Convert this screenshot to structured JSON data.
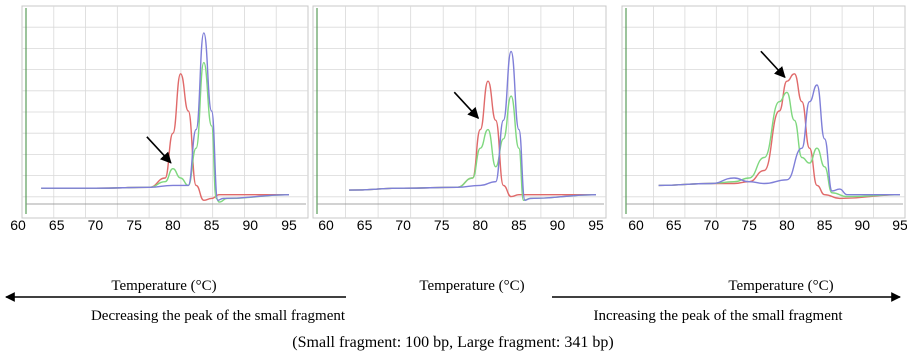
{
  "chart_data": [
    {
      "type": "line",
      "panel": "left",
      "xlim": [
        63,
        95
      ],
      "ylim": [
        0,
        1
      ],
      "x_ticks": [
        "60",
        "65",
        "70",
        "75",
        "80",
        "85",
        "90",
        "95"
      ],
      "grid": true,
      "series": [
        {
          "color": "#e06a6a",
          "points": [
            [
              63,
              0.085
            ],
            [
              70,
              0.085
            ],
            [
              77,
              0.09
            ],
            [
              79,
              0.14
            ],
            [
              80,
              0.38
            ],
            [
              81,
              0.7
            ],
            [
              82,
              0.5
            ],
            [
              83,
              0.1
            ],
            [
              84,
              0.02
            ],
            [
              85,
              0.03
            ],
            [
              86,
              0.05
            ],
            [
              95,
              0.05
            ]
          ]
        },
        {
          "color": "#7fd87f",
          "points": [
            [
              63,
              0.085
            ],
            [
              70,
              0.085
            ],
            [
              77,
              0.09
            ],
            [
              79,
              0.12
            ],
            [
              80,
              0.19
            ],
            [
              81,
              0.14
            ],
            [
              82,
              0.1
            ],
            [
              83,
              0.3
            ],
            [
              84,
              0.76
            ],
            [
              85,
              0.42
            ],
            [
              85.6,
              0.03
            ],
            [
              86,
              0.01
            ],
            [
              87,
              0.03
            ],
            [
              95,
              0.05
            ]
          ]
        },
        {
          "color": "#7f7fd8",
          "points": [
            [
              63,
              0.085
            ],
            [
              70,
              0.085
            ],
            [
              77,
              0.09
            ],
            [
              80,
              0.1
            ],
            [
              82,
              0.1
            ],
            [
              83,
              0.4
            ],
            [
              84,
              0.92
            ],
            [
              85,
              0.5
            ],
            [
              85.8,
              0.02
            ],
            [
              86.5,
              0.03
            ],
            [
              95,
              0.05
            ]
          ]
        }
      ],
      "arrow_at": [
        80,
        0.2
      ]
    },
    {
      "type": "line",
      "panel": "middle",
      "xlim": [
        63,
        95
      ],
      "ylim": [
        0,
        1
      ],
      "x_ticks": [
        "60",
        "65",
        "70",
        "75",
        "80",
        "85",
        "90",
        "95"
      ],
      "grid": true,
      "series": [
        {
          "color": "#e06a6a",
          "points": [
            [
              63,
              0.075
            ],
            [
              70,
              0.085
            ],
            [
              77,
              0.09
            ],
            [
              79,
              0.14
            ],
            [
              80,
              0.4
            ],
            [
              81,
              0.66
            ],
            [
              82,
              0.45
            ],
            [
              83,
              0.1
            ],
            [
              84,
              0.04
            ],
            [
              85,
              0.05
            ],
            [
              95,
              0.05
            ]
          ]
        },
        {
          "color": "#7fd87f",
          "points": [
            [
              63,
              0.075
            ],
            [
              70,
              0.085
            ],
            [
              77,
              0.09
            ],
            [
              79,
              0.14
            ],
            [
              80,
              0.3
            ],
            [
              81,
              0.4
            ],
            [
              82,
              0.2
            ],
            [
              83,
              0.35
            ],
            [
              84,
              0.58
            ],
            [
              85,
              0.3
            ],
            [
              85.6,
              0.02
            ],
            [
              86.5,
              0.03
            ],
            [
              95,
              0.05
            ]
          ]
        },
        {
          "color": "#7f7fd8",
          "points": [
            [
              63,
              0.075
            ],
            [
              70,
              0.085
            ],
            [
              77,
              0.09
            ],
            [
              80,
              0.1
            ],
            [
              82,
              0.12
            ],
            [
              83,
              0.45
            ],
            [
              84,
              0.82
            ],
            [
              85,
              0.4
            ],
            [
              85.8,
              0.02
            ],
            [
              86.5,
              0.03
            ],
            [
              95,
              0.05
            ]
          ]
        }
      ],
      "arrow_at": [
        80,
        0.44
      ]
    },
    {
      "type": "line",
      "panel": "right",
      "xlim": [
        63,
        95
      ],
      "ylim": [
        0,
        1
      ],
      "x_ticks": [
        "60",
        "65",
        "70",
        "75",
        "80",
        "85",
        "90",
        "95"
      ],
      "grid": true,
      "series": [
        {
          "color": "#e06a6a",
          "points": [
            [
              63,
              0.1
            ],
            [
              70,
              0.11
            ],
            [
              73,
              0.11
            ],
            [
              75,
              0.12
            ],
            [
              77,
              0.18
            ],
            [
              79,
              0.5
            ],
            [
              80,
              0.66
            ],
            [
              81,
              0.7
            ],
            [
              82,
              0.55
            ],
            [
              83,
              0.3
            ],
            [
              84,
              0.1
            ],
            [
              85,
              0.05
            ],
            [
              87,
              0.03
            ],
            [
              95,
              0.05
            ]
          ]
        },
        {
          "color": "#7fd87f",
          "points": [
            [
              63,
              0.1
            ],
            [
              70,
              0.11
            ],
            [
              73,
              0.12
            ],
            [
              75,
              0.14
            ],
            [
              77,
              0.25
            ],
            [
              79,
              0.55
            ],
            [
              80,
              0.6
            ],
            [
              81,
              0.45
            ],
            [
              82,
              0.25
            ],
            [
              83,
              0.22
            ],
            [
              84,
              0.3
            ],
            [
              85,
              0.2
            ],
            [
              86,
              0.06
            ],
            [
              88,
              0.04
            ],
            [
              95,
              0.05
            ]
          ]
        },
        {
          "color": "#7f7fd8",
          "points": [
            [
              63,
              0.1
            ],
            [
              70,
              0.11
            ],
            [
              73,
              0.14
            ],
            [
              75,
              0.12
            ],
            [
              77,
              0.11
            ],
            [
              80,
              0.13
            ],
            [
              82,
              0.3
            ],
            [
              83,
              0.55
            ],
            [
              84,
              0.64
            ],
            [
              85,
              0.35
            ],
            [
              86,
              0.07
            ],
            [
              87,
              0.08
            ],
            [
              88,
              0.05
            ],
            [
              95,
              0.05
            ]
          ]
        }
      ],
      "arrow_at": [
        80,
        0.66
      ]
    }
  ],
  "captions": {
    "temperature_label_1": "Temperature (°C)",
    "temperature_label_2": "Temperature (°C)",
    "temperature_label_3": "Temperature (°C)",
    "decreasing": "Decreasing the peak of the small fragment",
    "increasing": "Increasing the peak of the small fragment",
    "fragments": "(Small fragment: 100 bp, Large fragment: 341 bp)"
  }
}
